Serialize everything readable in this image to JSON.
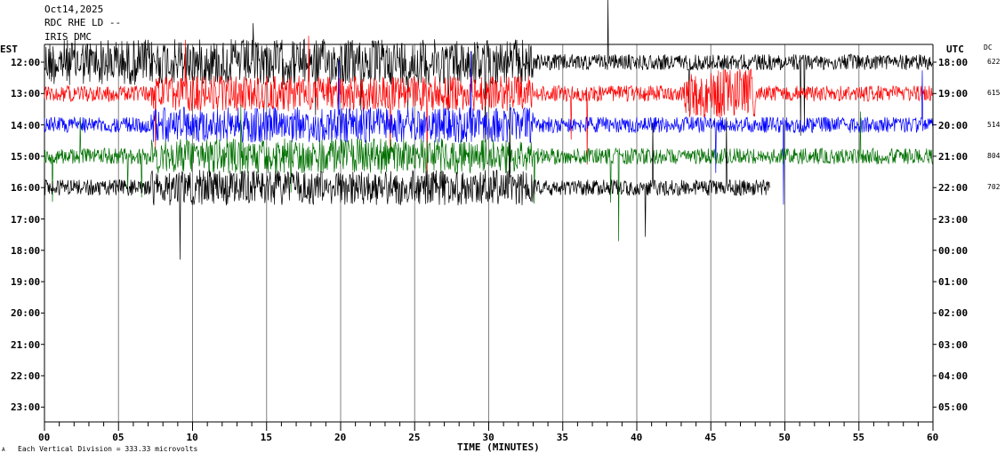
{
  "header": {
    "date": "Oct14,2025",
    "station": "RDC RHE LD --",
    "source": "IRIS DMC"
  },
  "labels": {
    "left_zone": "EST",
    "right_zone": "UTC",
    "dc": "DC",
    "xlabel": "TIME (MINUTES)",
    "footer": "Each Vertical Division =  333.33 microvolts",
    "footer_prefix": "A"
  },
  "colors": {
    "background": "#ffffff",
    "axis": "#000000",
    "grid": "#808080",
    "trace_cycle": [
      "#000000",
      "#ff0000",
      "#0000ff",
      "#007000"
    ]
  },
  "chart_data": {
    "type": "line",
    "title": "",
    "xlabel": "TIME (MINUTES)",
    "x_ticks": [
      "00",
      "05",
      "10",
      "15",
      "20",
      "25",
      "30",
      "35",
      "40",
      "45",
      "50",
      "55",
      "60"
    ],
    "xlim": [
      0,
      60
    ],
    "left_ticks": [
      "12:00",
      "13:00",
      "14:00",
      "15:00",
      "16:00",
      "17:00",
      "18:00",
      "19:00",
      "20:00",
      "21:00",
      "22:00",
      "23:00"
    ],
    "right_ticks": [
      "18:00",
      "19:00",
      "20:00",
      "21:00",
      "22:00",
      "23:00",
      "00:00",
      "01:00",
      "02:00",
      "03:00",
      "04:00",
      "05:00"
    ],
    "grid": "vertical lines every 5 minutes",
    "series": [
      {
        "hour": "12:00",
        "color": "#000000",
        "dc": "622",
        "end_minute": 60
      },
      {
        "hour": "13:00",
        "color": "#ff0000",
        "dc": "615",
        "end_minute": 60
      },
      {
        "hour": "14:00",
        "color": "#0000ff",
        "dc": "514",
        "end_minute": 60
      },
      {
        "hour": "15:00",
        "color": "#007000",
        "dc": "804",
        "end_minute": 60
      },
      {
        "hour": "16:00",
        "color": "#000000",
        "dc": "702",
        "end_minute": 49
      }
    ]
  }
}
